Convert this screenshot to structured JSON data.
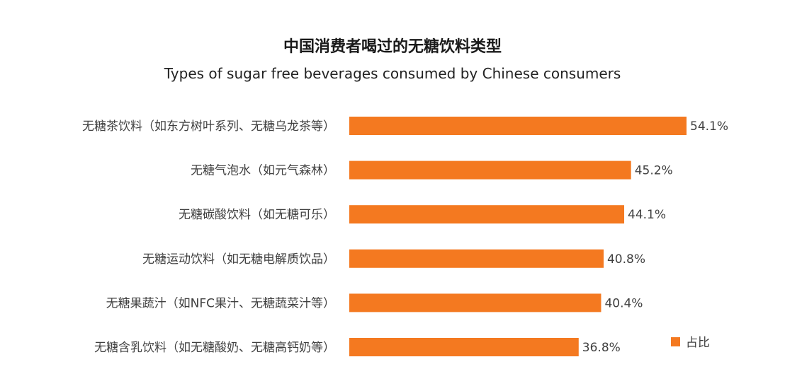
{
  "chart_data": {
    "type": "bar",
    "orientation": "horizontal",
    "title": "中国消费者喝过的无糖饮料类型",
    "subtitle": "Types of sugar free beverages consumed by Chinese consumers",
    "categories": [
      "无糖茶饮料（如东方树叶系列、无糖乌龙茶等）",
      "无糖气泡水（如元气森林）",
      "无糖碳酸饮料（如无糖可乐）",
      "无糖运动饮料（如无糖电解质饮品）",
      "无糖果蔬汁（如NFC果汁、无糖蔬菜汁等）",
      "无糖含乳饮料（如无糖酸奶、无糖高钙奶等）"
    ],
    "series": [
      {
        "name": "占比",
        "values": [
          54.1,
          45.2,
          44.1,
          40.8,
          40.4,
          36.8
        ],
        "labels": [
          "54.1%",
          "45.2%",
          "44.1%",
          "40.8%",
          "40.4%",
          "36.8%"
        ]
      }
    ],
    "xlim": [
      0,
      54.1
    ],
    "grid": false,
    "legend": "bottom-right",
    "colors": {
      "bar": "#F47920",
      "text": "#404040",
      "title": "#1a1a1a"
    }
  }
}
